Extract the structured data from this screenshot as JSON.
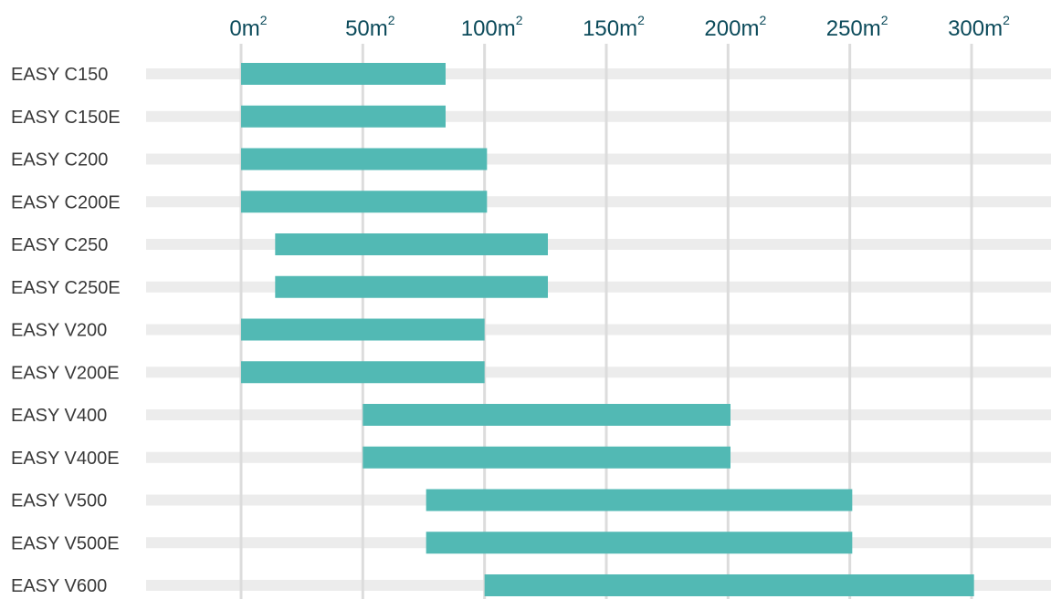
{
  "chart_data": {
    "type": "bar",
    "subtype": "floating-range-horizontal",
    "title": "",
    "xlabel": "",
    "ylabel": "",
    "unit": "m²",
    "xlim": [
      0,
      300
    ],
    "x_ticks": [
      0,
      50,
      100,
      150,
      200,
      250,
      300
    ],
    "x_tick_labels": [
      {
        "base": "0m",
        "sup": "2"
      },
      {
        "base": "50m",
        "sup": "2"
      },
      {
        "base": "100m",
        "sup": "2"
      },
      {
        "base": "150m",
        "sup": "2"
      },
      {
        "base": "200m",
        "sup": "2"
      },
      {
        "base": "250m",
        "sup": "2"
      },
      {
        "base": "300m",
        "sup": "2"
      }
    ],
    "x_axis_position": "top",
    "grid": true,
    "colors": {
      "bar": "#52b9b4",
      "row_track": "#ececec",
      "grid": "#dcdcdc",
      "tick_label": "#0b4a5a",
      "row_label": "#3a3a3a"
    },
    "categories": [
      "EASY C150",
      "EASY C150E",
      "EASY C200",
      "EASY C200E",
      "EASY C250",
      "EASY C250E",
      "EASY V200",
      "EASY V200E",
      "EASY V400",
      "EASY V400E",
      "EASY V500",
      "EASY V500E",
      "EASY V600"
    ],
    "ranges": [
      [
        0,
        84
      ],
      [
        0,
        84
      ],
      [
        0,
        101
      ],
      [
        0,
        101
      ],
      [
        14,
        126
      ],
      [
        14,
        126
      ],
      [
        0,
        100
      ],
      [
        0,
        100
      ],
      [
        50,
        201
      ],
      [
        50,
        201
      ],
      [
        76,
        251
      ],
      [
        76,
        251
      ],
      [
        100,
        301
      ]
    ]
  }
}
